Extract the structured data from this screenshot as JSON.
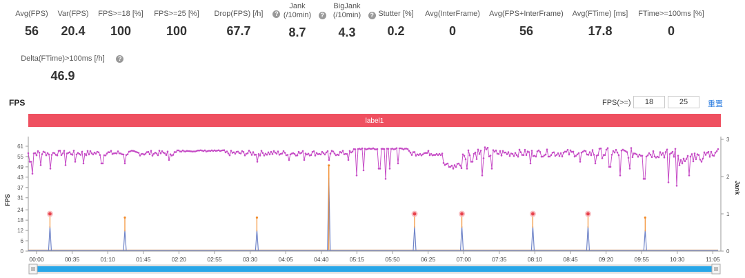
{
  "metrics": [
    {
      "label": "Avg(FPS)",
      "value": "56",
      "help": false
    },
    {
      "label": "Var(FPS)",
      "value": "20.4",
      "help": false
    },
    {
      "label": "FPS>=18 [%]",
      "value": "100",
      "help": false
    },
    {
      "label": "FPS>=25 [%]",
      "value": "100",
      "help": false
    },
    {
      "label": "Drop(FPS) [/h]",
      "value": "67.7",
      "help": true
    },
    {
      "label": "Jank\n(/10min)",
      "value": "8.7",
      "help": true
    },
    {
      "label": "BigJank\n(/10min)",
      "value": "4.3",
      "help": true
    },
    {
      "label": "Stutter [%]",
      "value": "0.2",
      "help": false
    },
    {
      "label": "Avg(InterFrame)",
      "value": "0",
      "help": false
    },
    {
      "label": "Avg(FPS+InterFrame)",
      "value": "56",
      "help": false
    },
    {
      "label": "Avg(FTime) [ms]",
      "value": "17.8",
      "help": false
    },
    {
      "label": "FTime>=100ms [%]",
      "value": "0",
      "help": false
    },
    {
      "label": "Delta(FTime)>100ms [/h]",
      "value": "46.9",
      "help": true
    }
  ],
  "help_glyph": "?",
  "chart_title": "FPS",
  "filter": {
    "label": "FPS(>=)",
    "low": "18",
    "high": "25",
    "reset_label": "重置"
  },
  "colors": {
    "fps_line": "#c64dc6",
    "jank_line": "#6f84c8",
    "bigjank_line": "#f28c2c",
    "label_band": "#ef5060",
    "slider": "#27a6e8",
    "marker": "#e8424c"
  },
  "chart_data": {
    "type": "line",
    "x_tick_labels": [
      "00:00",
      "00:35",
      "01:10",
      "01:45",
      "02:20",
      "02:55",
      "03:30",
      "04:05",
      "04:40",
      "05:15",
      "05:50",
      "06:25",
      "07:00",
      "07:35",
      "08:10",
      "08:45",
      "09:20",
      "09:55",
      "10:30",
      "11:05"
    ],
    "x_range_seconds": [
      0,
      700
    ],
    "y_left": {
      "label": "FPS",
      "ticks": [
        0,
        6,
        12,
        18,
        24,
        31,
        37,
        43,
        49,
        55,
        61
      ],
      "range": [
        0,
        65
      ]
    },
    "y_right": {
      "label": "Jank",
      "ticks": [
        0,
        1,
        2,
        3
      ],
      "range": [
        0,
        3
      ]
    },
    "band_label": "label1",
    "fps_series": {
      "name": "FPS",
      "base": 57,
      "dips": [
        [
          2,
          52
        ],
        [
          4,
          45
        ],
        [
          13,
          50
        ],
        [
          22,
          48
        ],
        [
          38,
          50
        ],
        [
          47,
          52
        ],
        [
          56,
          51
        ],
        [
          75,
          51
        ],
        [
          98,
          51
        ],
        [
          143,
          53
        ],
        [
          232,
          52
        ],
        [
          265,
          53
        ],
        [
          280,
          53
        ],
        [
          305,
          53
        ],
        [
          325,
          53
        ],
        [
          333,
          44
        ],
        [
          340,
          47
        ],
        [
          355,
          48
        ],
        [
          357,
          48
        ],
        [
          363,
          42
        ],
        [
          367,
          48
        ],
        [
          375,
          51
        ],
        [
          431,
          48
        ],
        [
          445,
          48
        ],
        [
          450,
          52
        ],
        [
          460,
          44
        ],
        [
          470,
          48
        ],
        [
          510,
          51
        ],
        [
          560,
          52
        ],
        [
          575,
          51
        ],
        [
          590,
          49
        ],
        [
          600,
          44
        ],
        [
          610,
          48
        ],
        [
          625,
          42
        ],
        [
          650,
          40
        ],
        [
          658,
          38
        ],
        [
          670,
          44
        ],
        [
          683,
          52
        ]
      ],
      "rough": [
        [
          432,
          470,
          0.6
        ],
        [
          470,
          560,
          0.35
        ],
        [
          570,
          700,
          0.5
        ]
      ]
    },
    "jank_events": [
      {
        "t": 22,
        "jank": 1,
        "marker": true
      },
      {
        "t": 98,
        "jank": 0.9,
        "marker": false
      },
      {
        "t": 232,
        "jank": 0.9,
        "marker": false
      },
      {
        "t": 305,
        "jank": 2.3,
        "marker": false,
        "bigjank": true
      },
      {
        "t": 392,
        "jank": 1,
        "marker": true
      },
      {
        "t": 440,
        "jank": 1,
        "marker": true
      },
      {
        "t": 512,
        "jank": 1,
        "marker": true
      },
      {
        "t": 568,
        "jank": 1,
        "marker": true
      },
      {
        "t": 626,
        "jank": 0.9,
        "marker": false
      }
    ]
  }
}
